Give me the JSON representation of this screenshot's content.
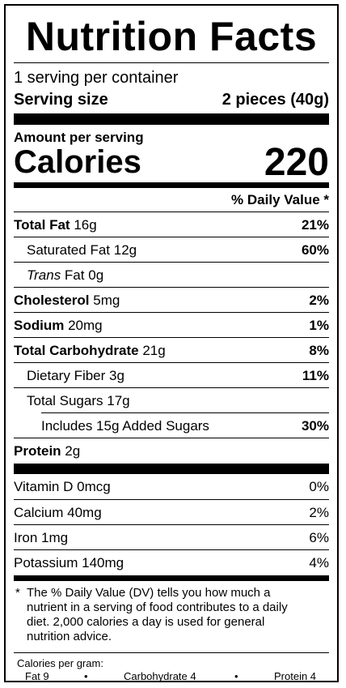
{
  "title": "Nutrition Facts",
  "servings_per_container": "1 serving per container",
  "serving_size": {
    "label": "Serving size",
    "value": "2 pieces (40g)"
  },
  "amount_per_serving": "Amount per serving",
  "calories": {
    "label": "Calories",
    "value": "220"
  },
  "daily_value_header": "% Daily Value *",
  "nutrients": [
    {
      "name": "Total Fat",
      "amount": "16g",
      "dv": "21%"
    },
    {
      "name": "Saturated Fat",
      "amount": "12g",
      "dv": "60%"
    },
    {
      "name_italic": "Trans",
      "name": " Fat",
      "amount": "0g",
      "dv": ""
    },
    {
      "name": "Cholesterol",
      "amount": "5mg",
      "dv": "2%"
    },
    {
      "name": "Sodium",
      "amount": "20mg",
      "dv": "1%"
    },
    {
      "name": "Total Carbohydrate",
      "amount": "21g",
      "dv": "8%"
    },
    {
      "name": "Dietary Fiber",
      "amount": "3g",
      "dv": "11%"
    },
    {
      "name": "Total Sugars",
      "amount": "17g",
      "dv": ""
    },
    {
      "name": "Includes 15g Added Sugars",
      "amount": "",
      "dv": "30%"
    },
    {
      "name": "Protein",
      "amount": "2g",
      "dv": ""
    }
  ],
  "vitamins": [
    {
      "name": "Vitamin D",
      "amount": "0mcg",
      "dv": "0%"
    },
    {
      "name": "Calcium",
      "amount": "40mg",
      "dv": "2%"
    },
    {
      "name": "Iron",
      "amount": "1mg",
      "dv": "6%"
    },
    {
      "name": "Potassium",
      "amount": "140mg",
      "dv": "4%"
    }
  ],
  "footnote": {
    "star": "*",
    "text": "The % Daily Value (DV) tells you how much a nutrient in a serving of food contributes to a daily diet. 2,000 calories a day is used for general nutrition advice."
  },
  "calories_per_gram": {
    "label": "Calories per gram:",
    "fat": "Fat 9",
    "bullet": "•",
    "carbohydrate": "Carbohydrate 4",
    "protein": "Protein 4"
  }
}
